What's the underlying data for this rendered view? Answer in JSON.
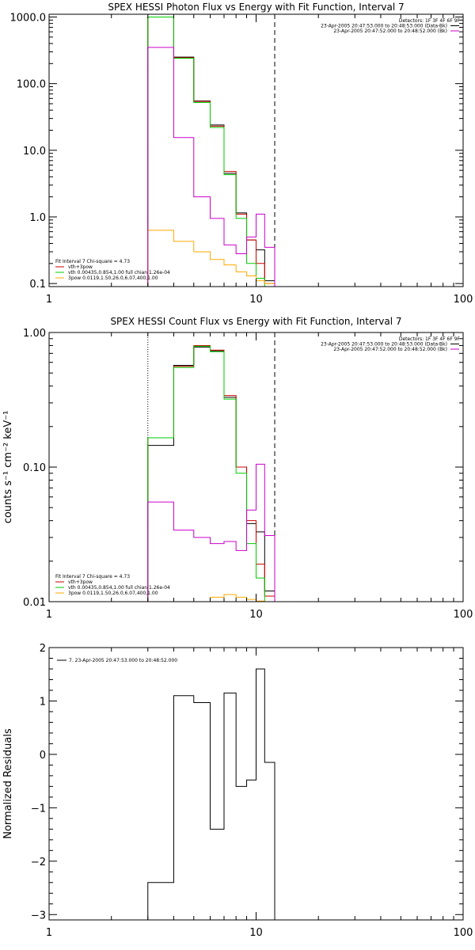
{
  "chart_data": [
    {
      "type": "line",
      "title": "SPEX HESSI Photon Flux vs Energy with Fit Function, Interval 7",
      "xlabel": "",
      "ylabel": "",
      "xscale": "log",
      "yscale": "log",
      "xlim": [
        1,
        100
      ],
      "ylim": [
        0.09,
        1100
      ],
      "x_ticks": [
        "1",
        "10",
        "100"
      ],
      "y_ticks": [
        "0.1",
        "1.0",
        "10.0",
        "100.0",
        "1000.0"
      ],
      "y_tick_values": [
        0.1,
        1,
        10,
        100,
        1000
      ],
      "vlines": [
        {
          "x": 3.0,
          "style": "dotted",
          "color": "#000000"
        },
        {
          "x": 12.3,
          "style": "dashed",
          "color": "#000000"
        }
      ],
      "edges": [
        3.0,
        4.0,
        5.0,
        6.0,
        7.0,
        8.0,
        9.0,
        10.0,
        11.0,
        12.3
      ],
      "series": [
        {
          "name": "Data (black)",
          "color": "#000000",
          "values": [
            1000,
            250,
            55,
            24,
            4.5,
            1.15,
            0.45,
            0.32,
            0.11
          ]
        },
        {
          "name": "vth+3pow",
          "color": "#cc0000",
          "values": [
            1000,
            245,
            54,
            23,
            4.8,
            1.1,
            0.45,
            0.2,
            0.1
          ]
        },
        {
          "name": "vth",
          "color": "#00cc00",
          "values": [
            1000,
            240,
            52,
            22,
            4.3,
            0.95,
            0.2,
            0.12,
            0.09
          ]
        },
        {
          "name": "3pow",
          "color": "#ffaa00",
          "values": [
            0.63,
            0.43,
            0.3,
            0.23,
            0.19,
            0.15,
            0.13,
            0.11,
            0.1
          ]
        },
        {
          "name": "Background",
          "color": "#cc00cc",
          "values": [
            350,
            15.5,
            2.0,
            0.95,
            0.38,
            0.28,
            0.5,
            1.1,
            0.35
          ]
        }
      ],
      "legend_top": {
        "detectors": "Detectors: 1F 3F 4F 6F 9F",
        "lines": [
          {
            "text": "23-Apr-2005 20:47:53.000 to 20:48:53.000 (Data-Bk)",
            "color": "#000000"
          },
          {
            "text": "23-Apr-2005 20:47:52.000 to 20:48:52.000 (Bk)",
            "color": "#cc00cc"
          }
        ]
      },
      "legend_bottom": {
        "header": "Fit Interval 7   Chi-square = 4.73",
        "lines": [
          {
            "text": "vth+3pow",
            "color": "#cc0000"
          },
          {
            "text": "vth 0.00435,0.854,1.00   full chian 1.26e-04",
            "color": "#00cc00"
          },
          {
            "text": "3pow 0.0119,1.50,26.0,6.07,400,1.00",
            "color": "#ffaa00"
          }
        ]
      }
    },
    {
      "type": "line",
      "title": "SPEX HESSI Count Flux vs Energy with Fit Function, Interval 7",
      "xlabel": "",
      "ylabel": "counts s⁻¹ cm⁻² keV⁻¹",
      "xscale": "log",
      "yscale": "log",
      "xlim": [
        1,
        100
      ],
      "ylim": [
        0.01,
        1.0
      ],
      "x_ticks": [
        "1",
        "10",
        "100"
      ],
      "y_ticks": [
        "0.01",
        "0.10",
        "1.00"
      ],
      "y_tick_values": [
        0.01,
        0.1,
        1.0
      ],
      "vlines": [
        {
          "x": 3.0,
          "style": "dotted",
          "color": "#000000"
        },
        {
          "x": 12.3,
          "style": "dashed",
          "color": "#000000"
        }
      ],
      "edges": [
        3.0,
        4.0,
        5.0,
        6.0,
        7.0,
        8.0,
        9.0,
        10.0,
        11.0,
        12.3
      ],
      "series": [
        {
          "name": "Data (black)",
          "color": "#000000",
          "values": [
            0.145,
            0.57,
            0.78,
            0.73,
            0.33,
            0.1,
            0.038,
            0.033,
            0.012
          ]
        },
        {
          "name": "vth+3pow",
          "color": "#cc0000",
          "values": [
            0.165,
            0.56,
            0.8,
            0.74,
            0.34,
            0.1,
            0.04,
            0.019,
            0.011
          ]
        },
        {
          "name": "vth",
          "color": "#00cc00",
          "values": [
            0.165,
            0.55,
            0.79,
            0.72,
            0.32,
            0.09,
            0.027,
            0.015,
            0.009
          ]
        },
        {
          "name": "3pow",
          "color": "#ffaa00",
          "values": [
            0.0095,
            0.0098,
            0.0099,
            0.0108,
            0.0113,
            0.0108,
            0.0104,
            0.0101,
            0.0099
          ]
        },
        {
          "name": "Background",
          "color": "#cc00cc",
          "values": [
            0.055,
            0.034,
            0.03,
            0.027,
            0.028,
            0.024,
            0.048,
            0.105,
            0.031
          ]
        }
      ],
      "legend_top": {
        "detectors": "Detectors: 1F 3F 4F 6F 9F",
        "lines": [
          {
            "text": "23-Apr-2005 20:47:53.000 to 20:48:53.000 (Data-Bk)",
            "color": "#000000"
          },
          {
            "text": "23-Apr-2005 20:47:52.000 to 20:48:52.000 (Bk)",
            "color": "#cc00cc"
          }
        ]
      },
      "legend_bottom": {
        "header": "Fit Interval 7   Chi-square = 4.73",
        "lines": [
          {
            "text": "vth+3pow",
            "color": "#cc0000"
          },
          {
            "text": "vth 0.00435,0.854,1.00   full chian 1.26e-04",
            "color": "#00cc00"
          },
          {
            "text": "3pow 0.0119,1.50,26.0,6.07,400,1.00",
            "color": "#ffaa00"
          }
        ]
      }
    },
    {
      "type": "line",
      "title": "",
      "xlabel": "",
      "ylabel": "Normalized Residuals",
      "xscale": "log",
      "yscale": "linear",
      "xlim": [
        1,
        100
      ],
      "ylim": [
        -3.1,
        2.0
      ],
      "x_ticks": [
        "1",
        "10",
        "100"
      ],
      "y_ticks": [
        "-3",
        "-2",
        "-1",
        "0",
        "1",
        "2"
      ],
      "y_tick_values": [
        -3,
        -2,
        -1,
        0,
        1,
        2
      ],
      "edges": [
        3.0,
        4.0,
        5.0,
        6.0,
        7.0,
        8.0,
        9.0,
        10.0,
        11.0,
        12.3
      ],
      "series": [
        {
          "name": "7. 23-Apr-2005 20:47:53.000 to 20:48:52.000",
          "color": "#000000",
          "values": [
            -2.4,
            1.1,
            0.97,
            -1.4,
            1.15,
            -0.6,
            -0.48,
            1.6,
            -0.15
          ]
        }
      ],
      "legend_top": {
        "lines": [
          {
            "text": "7. 23-Apr-2005 20:47:53.000 to 20:48:52.000",
            "color": "#000000"
          }
        ]
      }
    }
  ]
}
